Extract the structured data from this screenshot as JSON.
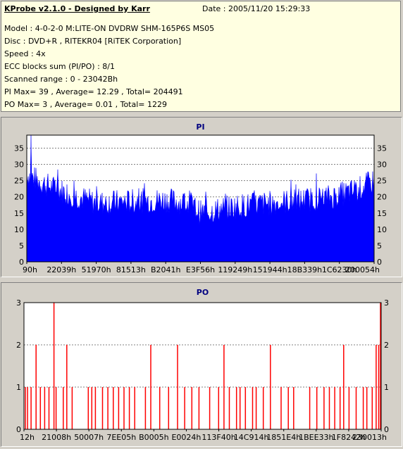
{
  "header": {
    "title": "KProbe v2.1.0 - Designed by Karr",
    "date": "Date : 2005/11/20 15:29:33",
    "lines": [
      "Model : 4-0-2-0 M:LITE-ON DVDRW SHM-165P6S MS05",
      "Disc : DVD+R , RITEKR04 [RiTEK Corporation]",
      "Speed : 4x",
      "ECC blocks sum (PI/PO) : 8/1",
      "Scanned range : 0 - 23042Bh",
      "PI Max= 39 , Average= 12.29 , Total= 204491",
      "PO Max= 3 , Average= 0.01 , Total= 1229"
    ]
  },
  "colors": {
    "pi_fill": "#0000ff",
    "po_fill": "#ff0000",
    "plot_bg": "#ffffff",
    "title_text": "#000080"
  },
  "chart_data": [
    {
      "type": "area",
      "title": "PI",
      "ylim": [
        0,
        39
      ],
      "yticks": [
        0,
        5,
        10,
        15,
        20,
        25,
        30,
        35
      ],
      "x_tick_labels": [
        "90h",
        "22039h",
        "51970h",
        "81513h",
        "B2041h",
        "E3F56h",
        "119249h",
        "151944h",
        "18B339h",
        "1C6230h",
        "200054h"
      ],
      "grid": true,
      "profile_x": [
        0,
        0.03,
        0.07,
        0.12,
        0.2,
        0.3,
        0.4,
        0.47,
        0.5,
        0.55,
        0.6,
        0.7,
        0.8,
        0.88,
        0.95,
        1.0
      ],
      "profile_y": [
        27,
        25,
        23,
        21,
        18,
        18.5,
        19,
        18,
        15,
        16,
        17,
        18,
        19,
        20,
        22,
        25
      ]
    },
    {
      "type": "bar",
      "title": "PO",
      "ylim": [
        0,
        3
      ],
      "yticks": [
        0,
        1,
        2,
        3
      ],
      "x_tick_labels": [
        "12h",
        "21008h",
        "50007h",
        "7EE05h",
        "B0005h",
        "E0024h",
        "113F40h",
        "14C914h",
        "1851E4h",
        "1BEE33h",
        "1F8242h",
        "230013h"
      ],
      "grid": true,
      "spikes": [
        {
          "x": 0.004,
          "v": 1
        },
        {
          "x": 0.01,
          "v": 1
        },
        {
          "x": 0.02,
          "v": 1
        },
        {
          "x": 0.034,
          "v": 2
        },
        {
          "x": 0.046,
          "v": 1
        },
        {
          "x": 0.058,
          "v": 1
        },
        {
          "x": 0.07,
          "v": 1
        },
        {
          "x": 0.084,
          "v": 3
        },
        {
          "x": 0.09,
          "v": 1
        },
        {
          "x": 0.11,
          "v": 1
        },
        {
          "x": 0.12,
          "v": 2
        },
        {
          "x": 0.135,
          "v": 1
        },
        {
          "x": 0.18,
          "v": 1
        },
        {
          "x": 0.19,
          "v": 1
        },
        {
          "x": 0.2,
          "v": 1
        },
        {
          "x": 0.22,
          "v": 1
        },
        {
          "x": 0.235,
          "v": 1
        },
        {
          "x": 0.25,
          "v": 1
        },
        {
          "x": 0.265,
          "v": 1
        },
        {
          "x": 0.28,
          "v": 1
        },
        {
          "x": 0.295,
          "v": 1
        },
        {
          "x": 0.31,
          "v": 1
        },
        {
          "x": 0.34,
          "v": 1
        },
        {
          "x": 0.355,
          "v": 2
        },
        {
          "x": 0.38,
          "v": 1
        },
        {
          "x": 0.405,
          "v": 1
        },
        {
          "x": 0.43,
          "v": 2
        },
        {
          "x": 0.45,
          "v": 1
        },
        {
          "x": 0.47,
          "v": 1
        },
        {
          "x": 0.49,
          "v": 1
        },
        {
          "x": 0.52,
          "v": 1
        },
        {
          "x": 0.545,
          "v": 1
        },
        {
          "x": 0.56,
          "v": 2
        },
        {
          "x": 0.575,
          "v": 1
        },
        {
          "x": 0.595,
          "v": 1
        },
        {
          "x": 0.605,
          "v": 1
        },
        {
          "x": 0.62,
          "v": 1
        },
        {
          "x": 0.64,
          "v": 1
        },
        {
          "x": 0.65,
          "v": 1
        },
        {
          "x": 0.67,
          "v": 1
        },
        {
          "x": 0.69,
          "v": 2
        },
        {
          "x": 0.72,
          "v": 1
        },
        {
          "x": 0.74,
          "v": 1
        },
        {
          "x": 0.755,
          "v": 1
        },
        {
          "x": 0.8,
          "v": 1
        },
        {
          "x": 0.82,
          "v": 1
        },
        {
          "x": 0.84,
          "v": 1
        },
        {
          "x": 0.855,
          "v": 1
        },
        {
          "x": 0.87,
          "v": 1
        },
        {
          "x": 0.885,
          "v": 1
        },
        {
          "x": 0.895,
          "v": 2
        },
        {
          "x": 0.91,
          "v": 1
        },
        {
          "x": 0.93,
          "v": 1
        },
        {
          "x": 0.95,
          "v": 1
        },
        {
          "x": 0.96,
          "v": 1
        },
        {
          "x": 0.975,
          "v": 1
        },
        {
          "x": 0.986,
          "v": 2
        },
        {
          "x": 0.993,
          "v": 2
        },
        {
          "x": 0.998,
          "v": 3
        }
      ]
    }
  ]
}
